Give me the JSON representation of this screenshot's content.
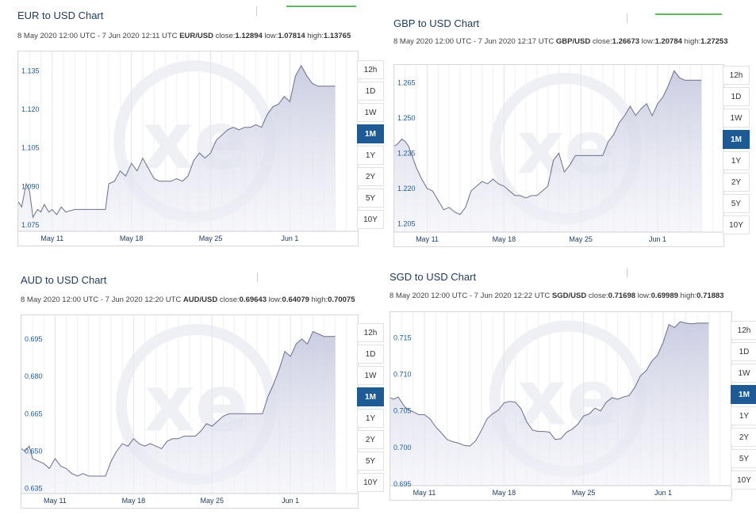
{
  "panels": [
    {
      "title": "EUR to USD Chart",
      "date_range": "8 May 2020 12:00 UTC - 7 Jun 2020 12:11 UTC",
      "pair": "EUR/USD",
      "close_label": "close:",
      "close": "1.12894",
      "low_label": "low:",
      "low": "1.07814",
      "high_label": "high:",
      "high": "1.13765"
    },
    {
      "title": "GBP to USD Chart",
      "date_range": "8 May 2020 12:00 UTC - 7 Jun 2020 12:17 UTC",
      "pair": "GBP/USD",
      "close_label": "close:",
      "close": "1.26673",
      "low_label": "low:",
      "low": "1.20784",
      "high_label": "high:",
      "high": "1.27253"
    },
    {
      "title": "AUD to USD Chart",
      "date_range": "8 May 2020 12:00 UTC - 7 Jun 2020 12:20 UTC",
      "pair": "AUD/USD",
      "close_label": "close:",
      "close": "0.69643",
      "low_label": "low:",
      "low": "0.64079",
      "high_label": "high:",
      "high": "0.70075"
    },
    {
      "title": "SGD to USD Chart",
      "date_range": "8 May 2020 12:00 UTC - 7 Jun 2020 12:22 UTC",
      "pair": "SGD/USD",
      "close_label": "close:",
      "close": "0.71698",
      "low_label": "low:",
      "low": "0.69989",
      "high_label": "high:",
      "high": "0.71883"
    }
  ],
  "range_buttons": [
    "12h",
    "1D",
    "1W",
    "1M",
    "1Y",
    "2Y",
    "5Y",
    "10Y"
  ],
  "active_range": "1M",
  "watermark_text": "xe",
  "colors": {
    "line": "#6b6f8a",
    "fill": "#c8cbe0",
    "accent": "#1e5b94",
    "title": "#1f3a5a"
  },
  "chart_data": [
    {
      "type": "area",
      "title": "EUR to USD Chart",
      "x_tick_labels": [
        "May 11",
        "May 18",
        "May 25",
        "Jun 1"
      ],
      "x_tick_days": [
        3,
        10,
        17,
        24
      ],
      "y_tick_labels": [
        "1.075",
        "1.090",
        "1.105",
        "1.120",
        "1.135"
      ],
      "y_ticks": [
        1.075,
        1.09,
        1.105,
        1.12,
        1.135
      ],
      "ylim": [
        1.0725,
        1.1425
      ],
      "xlim": [
        0,
        30
      ],
      "x": [
        0,
        0.3,
        0.7,
        1,
        1.3,
        1.7,
        2,
        2.3,
        2.7,
        3,
        3.4,
        3.8,
        4.2,
        5,
        6,
        7,
        7.7,
        8,
        8.5,
        9,
        9.5,
        10,
        10.5,
        11,
        11.5,
        12,
        12.5,
        13,
        13.5,
        14,
        14.5,
        15,
        15.5,
        16,
        16.5,
        17,
        17.5,
        18,
        18.5,
        19,
        19.5,
        20,
        20.5,
        21,
        21.5,
        22,
        22.5,
        23,
        23.5,
        24,
        24.5,
        25,
        25.5,
        26,
        26.5,
        27,
        27.5,
        28
      ],
      "y": [
        1.084,
        1.082,
        1.091,
        1.088,
        1.078,
        1.081,
        1.08,
        1.083,
        1.08,
        1.081,
        1.079,
        1.082,
        1.08,
        1.081,
        1.081,
        1.081,
        1.081,
        1.091,
        1.092,
        1.096,
        1.094,
        1.099,
        1.096,
        1.101,
        1.097,
        1.093,
        1.092,
        1.092,
        1.092,
        1.093,
        1.092,
        1.094,
        1.1,
        1.103,
        1.101,
        1.103,
        1.108,
        1.11,
        1.112,
        1.113,
        1.112,
        1.113,
        1.113,
        1.114,
        1.113,
        1.118,
        1.121,
        1.122,
        1.125,
        1.123,
        1.133,
        1.137,
        1.133,
        1.13,
        1.129,
        1.129,
        1.129,
        1.129
      ]
    },
    {
      "type": "area",
      "title": "GBP to USD Chart",
      "x_tick_labels": [
        "May 11",
        "May 18",
        "May 25",
        "Jun 1"
      ],
      "x_tick_days": [
        3,
        10,
        17,
        24
      ],
      "y_tick_labels": [
        "1.205",
        "1.220",
        "1.235",
        "1.250",
        "1.265"
      ],
      "y_ticks": [
        1.205,
        1.22,
        1.235,
        1.25,
        1.265
      ],
      "ylim": [
        1.2015,
        1.2725
      ],
      "xlim": [
        0,
        30
      ],
      "x": [
        0,
        0.3,
        0.7,
        1,
        1.3,
        1.7,
        2,
        2.5,
        3,
        3.5,
        4,
        4.5,
        5,
        5.5,
        6,
        6.5,
        7,
        7.5,
        8,
        8.5,
        9,
        9.5,
        10,
        10.5,
        11,
        11.5,
        12,
        12.5,
        13,
        13.5,
        14,
        14.5,
        15,
        15.5,
        16,
        16.5,
        17,
        17.5,
        18,
        18.5,
        19,
        19.5,
        20,
        20.5,
        21,
        21.5,
        22,
        22.5,
        23,
        23.5,
        24,
        24.5,
        25,
        25.5,
        26,
        26.5,
        27,
        27.5,
        28
      ],
      "y": [
        1.238,
        1.239,
        1.241,
        1.24,
        1.238,
        1.233,
        1.229,
        1.224,
        1.22,
        1.219,
        1.215,
        1.211,
        1.212,
        1.21,
        1.209,
        1.212,
        1.219,
        1.221,
        1.223,
        1.222,
        1.224,
        1.222,
        1.221,
        1.219,
        1.217,
        1.217,
        1.216,
        1.217,
        1.217,
        1.219,
        1.221,
        1.232,
        1.235,
        1.227,
        1.23,
        1.234,
        1.234,
        1.234,
        1.234,
        1.234,
        1.234,
        1.24,
        1.243,
        1.248,
        1.251,
        1.255,
        1.251,
        1.254,
        1.256,
        1.251,
        1.256,
        1.259,
        1.264,
        1.27,
        1.267,
        1.266,
        1.266,
        1.266,
        1.266
      ]
    },
    {
      "type": "area",
      "title": "AUD to USD Chart",
      "x_tick_labels": [
        "May 11",
        "May 18",
        "May 25",
        "Jun 1"
      ],
      "x_tick_days": [
        3,
        10,
        17,
        24
      ],
      "y_tick_labels": [
        "0.635",
        "0.650",
        "0.665",
        "0.680",
        "0.695"
      ],
      "y_ticks": [
        0.635,
        0.65,
        0.665,
        0.68,
        0.695
      ],
      "ylim": [
        0.633,
        0.7045
      ],
      "xlim": [
        0,
        30
      ],
      "x": [
        0,
        0.3,
        0.7,
        1,
        1.5,
        2,
        2.5,
        3,
        3.5,
        4,
        4.5,
        5,
        5.5,
        6,
        6.5,
        7,
        7.5,
        8,
        8.5,
        9,
        9.5,
        10,
        10.5,
        11,
        11.5,
        12,
        12.5,
        13,
        13.5,
        14,
        14.5,
        15,
        15.5,
        16,
        16.5,
        17,
        17.5,
        18,
        18.5,
        19,
        19.5,
        20,
        20.5,
        21,
        21.5,
        22,
        22.5,
        23,
        23.5,
        24,
        24.5,
        25,
        25.5,
        26,
        26.5,
        27,
        27.5,
        28
      ],
      "y": [
        0.651,
        0.65,
        0.652,
        0.647,
        0.646,
        0.645,
        0.643,
        0.647,
        0.644,
        0.643,
        0.641,
        0.64,
        0.641,
        0.64,
        0.64,
        0.64,
        0.64,
        0.646,
        0.65,
        0.653,
        0.652,
        0.655,
        0.653,
        0.652,
        0.653,
        0.652,
        0.651,
        0.654,
        0.655,
        0.655,
        0.656,
        0.656,
        0.656,
        0.658,
        0.661,
        0.66,
        0.662,
        0.664,
        0.665,
        0.665,
        0.665,
        0.665,
        0.665,
        0.665,
        0.665,
        0.672,
        0.677,
        0.683,
        0.69,
        0.688,
        0.693,
        0.695,
        0.693,
        0.698,
        0.697,
        0.696,
        0.696,
        0.696
      ]
    },
    {
      "type": "area",
      "title": "SGD to USD Chart",
      "x_tick_labels": [
        "May 11",
        "May 18",
        "May 25",
        "Jun 1"
      ],
      "x_tick_days": [
        3,
        10,
        17,
        24
      ],
      "y_tick_labels": [
        "0.695",
        "0.700",
        "0.705",
        "0.710",
        "0.715"
      ],
      "y_ticks": [
        0.695,
        0.7,
        0.705,
        0.71,
        0.715
      ],
      "ylim": [
        0.6948,
        0.7185
      ],
      "xlim": [
        0,
        30
      ],
      "x": [
        0,
        0.3,
        0.7,
        1,
        1.3,
        1.7,
        2,
        2.5,
        3,
        3.5,
        4,
        4.5,
        5,
        5.5,
        6,
        6.5,
        7,
        7.5,
        8,
        8.5,
        9,
        9.5,
        10,
        10.5,
        11,
        11.5,
        12,
        12.5,
        13,
        13.5,
        14,
        14.5,
        15,
        15.5,
        16,
        16.5,
        17,
        17.5,
        18,
        18.5,
        19,
        19.5,
        20,
        20.5,
        21,
        21.5,
        22,
        22.5,
        23,
        23.5,
        24,
        24.5,
        25,
        25.5,
        26,
        26.5,
        27,
        27.5,
        28
      ],
      "y": [
        0.7068,
        0.7066,
        0.7069,
        0.7062,
        0.7055,
        0.7051,
        0.7049,
        0.7045,
        0.7045,
        0.7039,
        0.7028,
        0.702,
        0.7011,
        0.7008,
        0.7006,
        0.7003,
        0.7002,
        0.7009,
        0.7023,
        0.7039,
        0.7046,
        0.7051,
        0.7061,
        0.7063,
        0.7062,
        0.7053,
        0.7035,
        0.7024,
        0.7022,
        0.7022,
        0.7021,
        0.7011,
        0.7012,
        0.7021,
        0.7025,
        0.7032,
        0.7043,
        0.7046,
        0.7054,
        0.705,
        0.7062,
        0.7068,
        0.7066,
        0.7069,
        0.7071,
        0.7082,
        0.7098,
        0.7105,
        0.7118,
        0.7126,
        0.7144,
        0.7168,
        0.7164,
        0.7172,
        0.717,
        0.7169,
        0.717,
        0.717,
        0.717
      ]
    }
  ]
}
